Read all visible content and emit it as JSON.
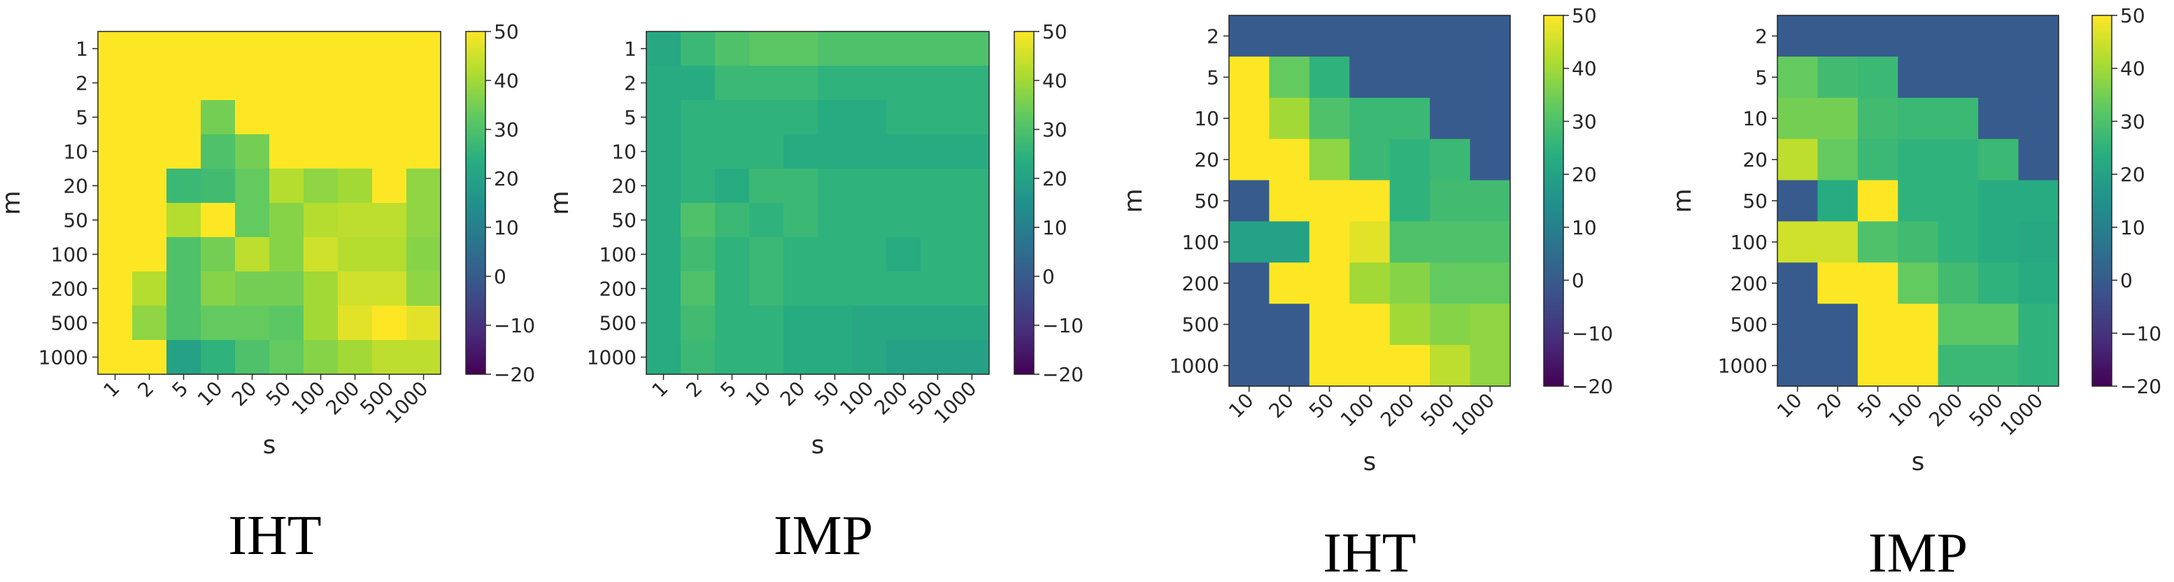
{
  "chart_data": [
    {
      "type": "heatmap",
      "title": "IHT",
      "xlabel": "s",
      "ylabel": "m",
      "x_categories": [
        "1",
        "2",
        "5",
        "10",
        "20",
        "50",
        "100",
        "200",
        "500",
        "1000"
      ],
      "y_categories": [
        "1",
        "2",
        "5",
        "10",
        "20",
        "50",
        "100",
        "200",
        "500",
        "1000"
      ],
      "values": [
        [
          50,
          50,
          50,
          50,
          50,
          50,
          50,
          50,
          50,
          50
        ],
        [
          50,
          50,
          50,
          50,
          50,
          50,
          50,
          50,
          50,
          50
        ],
        [
          50,
          50,
          50,
          35,
          50,
          50,
          50,
          50,
          50,
          50
        ],
        [
          50,
          50,
          50,
          30,
          35,
          50,
          50,
          50,
          50,
          50
        ],
        [
          50,
          50,
          27,
          28,
          33,
          42,
          38,
          40,
          50,
          38
        ],
        [
          50,
          50,
          42,
          50,
          33,
          37,
          42,
          43,
          43,
          38
        ],
        [
          50,
          50,
          30,
          35,
          43,
          37,
          45,
          42,
          42,
          37
        ],
        [
          50,
          42,
          30,
          37,
          35,
          35,
          40,
          45,
          45,
          38
        ],
        [
          50,
          38,
          30,
          33,
          33,
          32,
          40,
          47,
          50,
          47
        ],
        [
          50,
          50,
          20,
          25,
          30,
          33,
          37,
          40,
          43,
          43
        ]
      ],
      "colorbar": {
        "min": -20,
        "max": 50,
        "ticks": [
          "50",
          "40",
          "30",
          "20",
          "10",
          "0",
          "−10",
          "−20"
        ]
      }
    },
    {
      "type": "heatmap",
      "title": "IMP",
      "xlabel": "s",
      "ylabel": "m",
      "x_categories": [
        "1",
        "2",
        "5",
        "10",
        "20",
        "50",
        "100",
        "200",
        "500",
        "1000"
      ],
      "y_categories": [
        "1",
        "2",
        "5",
        "10",
        "20",
        "50",
        "100",
        "200",
        "500",
        "1000"
      ],
      "values": [
        [
          22,
          27,
          30,
          32,
          32,
          30,
          30,
          30,
          30,
          30
        ],
        [
          23,
          23,
          27,
          27,
          27,
          25,
          25,
          25,
          25,
          25
        ],
        [
          23,
          25,
          25,
          25,
          25,
          23,
          23,
          25,
          25,
          25
        ],
        [
          23,
          25,
          25,
          25,
          23,
          23,
          23,
          23,
          23,
          23
        ],
        [
          23,
          25,
          23,
          27,
          27,
          25,
          25,
          25,
          25,
          25
        ],
        [
          23,
          30,
          27,
          25,
          27,
          25,
          25,
          25,
          25,
          25
        ],
        [
          23,
          28,
          25,
          27,
          25,
          25,
          25,
          23,
          25,
          25
        ],
        [
          23,
          30,
          25,
          27,
          25,
          25,
          25,
          25,
          25,
          25
        ],
        [
          23,
          28,
          25,
          25,
          23,
          23,
          22,
          22,
          22,
          22
        ],
        [
          23,
          27,
          25,
          25,
          23,
          23,
          22,
          20,
          20,
          20
        ]
      ],
      "colorbar": {
        "min": -20,
        "max": 50,
        "ticks": [
          "50",
          "40",
          "30",
          "20",
          "10",
          "0",
          "−10",
          "−20"
        ]
      }
    },
    {
      "type": "heatmap",
      "title": "IHT",
      "xlabel": "s",
      "ylabel": "m",
      "x_categories": [
        "10",
        "20",
        "50",
        "100",
        "200",
        "500",
        "1000"
      ],
      "y_categories": [
        "2",
        "5",
        "10",
        "20",
        "50",
        "100",
        "200",
        "500",
        "1000"
      ],
      "values": [
        [
          0,
          0,
          0,
          0,
          0,
          0,
          0
        ],
        [
          50,
          33,
          25,
          0,
          0,
          0,
          0
        ],
        [
          50,
          40,
          30,
          27,
          27,
          0,
          0
        ],
        [
          50,
          50,
          38,
          27,
          25,
          27,
          0
        ],
        [
          0,
          50,
          50,
          50,
          25,
          28,
          28
        ],
        [
          20,
          20,
          50,
          47,
          30,
          30,
          30
        ],
        [
          0,
          50,
          50,
          40,
          37,
          33,
          33
        ],
        [
          0,
          0,
          50,
          50,
          40,
          37,
          38
        ],
        [
          0,
          0,
          50,
          50,
          50,
          43,
          38
        ]
      ],
      "colorbar": {
        "min": -20,
        "max": 50,
        "ticks": [
          "50",
          "40",
          "30",
          "20",
          "10",
          "0",
          "−10",
          "−20"
        ]
      }
    },
    {
      "type": "heatmap",
      "title": "IMP",
      "xlabel": "s",
      "ylabel": "m",
      "x_categories": [
        "10",
        "20",
        "50",
        "100",
        "200",
        "500",
        "1000"
      ],
      "y_categories": [
        "2",
        "5",
        "10",
        "20",
        "50",
        "100",
        "200",
        "500",
        "1000"
      ],
      "values": [
        [
          0,
          0,
          0,
          0,
          0,
          0,
          0
        ],
        [
          33,
          28,
          27,
          0,
          0,
          0,
          0
        ],
        [
          35,
          35,
          28,
          27,
          27,
          0,
          0
        ],
        [
          43,
          33,
          27,
          25,
          25,
          27,
          0
        ],
        [
          0,
          23,
          50,
          25,
          25,
          23,
          23
        ],
        [
          45,
          45,
          30,
          28,
          25,
          23,
          22
        ],
        [
          0,
          50,
          50,
          33,
          28,
          25,
          23
        ],
        [
          0,
          0,
          50,
          50,
          32,
          32,
          25
        ],
        [
          0,
          0,
          50,
          50,
          27,
          27,
          25
        ]
      ],
      "colorbar": {
        "min": -20,
        "max": 50,
        "ticks": [
          "50",
          "40",
          "30",
          "20",
          "10",
          "0",
          "−10",
          "−20"
        ]
      }
    }
  ]
}
